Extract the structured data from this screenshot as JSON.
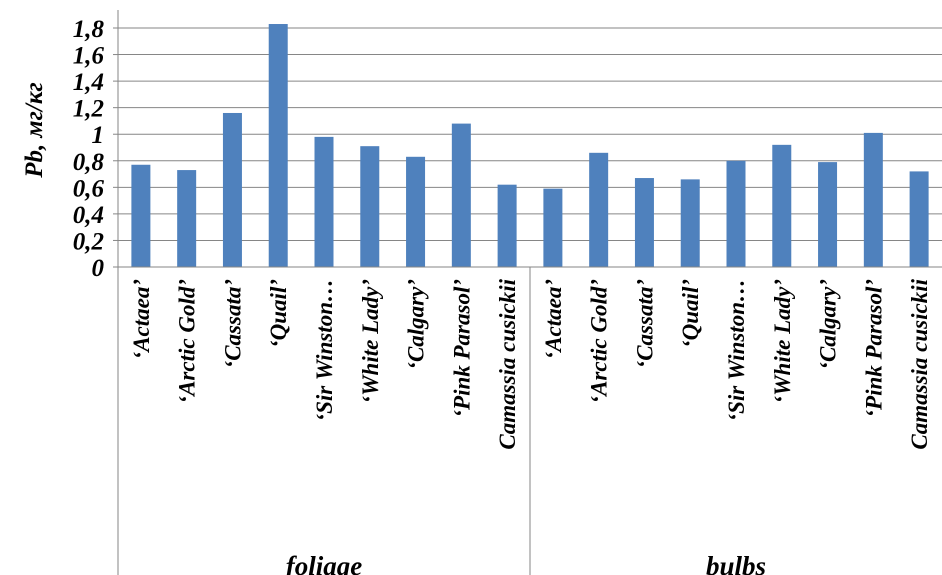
{
  "chart_data": {
    "type": "bar",
    "ylabel": "Pb, мг/кг",
    "ylim": [
      0,
      1.9
    ],
    "ytick_labels": [
      "0",
      "0,2",
      "0,4",
      "0,6",
      "0,8",
      "1",
      "1,2",
      "1,4",
      "1,6",
      "1,8"
    ],
    "grid": true,
    "bar_color": "#4F81BD",
    "groups": [
      {
        "name": "foliage",
        "categories": [
          "‘Actaea’",
          "‘Arctic Gold’",
          "‘Cassata’",
          "‘Quail’",
          "‘Sir Winston…",
          "‘White Lady’",
          "‘Calgary’",
          "‘Pink Parasol’",
          "Camassia cusickii"
        ],
        "values": [
          0.77,
          0.73,
          1.16,
          1.83,
          0.98,
          0.91,
          0.83,
          1.08,
          0.62
        ]
      },
      {
        "name": "bulbs",
        "categories": [
          "‘Actaea’",
          "‘Arctic Gold’",
          "‘Cassata’",
          "‘Quail’",
          "‘Sir Winston…",
          "‘White Lady’",
          "‘Calgary’",
          "‘Pink Parasol’",
          "Camassia cusickii"
        ],
        "values": [
          0.59,
          0.86,
          0.67,
          0.66,
          0.8,
          0.92,
          0.79,
          1.01,
          0.72
        ]
      }
    ]
  }
}
